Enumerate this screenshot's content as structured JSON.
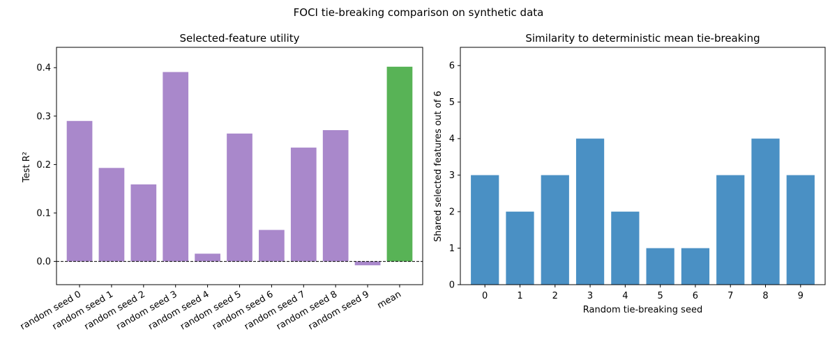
{
  "figure": {
    "suptitle": "FOCI tie-breaking comparison on synthetic data"
  },
  "chart_data": [
    {
      "type": "bar",
      "title": "Selected-feature utility",
      "xlabel": "",
      "ylabel": "Test R²",
      "categories": [
        "random seed 0",
        "random seed 1",
        "random seed 2",
        "random seed 3",
        "random seed 4",
        "random seed 5",
        "random seed 6",
        "random seed 7",
        "random seed 8",
        "random seed 9",
        "mean"
      ],
      "values": [
        0.29,
        0.193,
        0.159,
        0.391,
        0.016,
        0.264,
        0.065,
        0.235,
        0.271,
        -0.008,
        0.402
      ],
      "bar_colors": [
        "#a988cb",
        "#a988cb",
        "#a988cb",
        "#a988cb",
        "#a988cb",
        "#a988cb",
        "#a988cb",
        "#a988cb",
        "#a988cb",
        "#a988cb",
        "#58b356"
      ],
      "ylim": [
        -0.048,
        0.442
      ],
      "yticks": [
        0.0,
        0.1,
        0.2,
        0.3,
        0.4
      ],
      "ytick_labels": [
        "0.0",
        "0.1",
        "0.2",
        "0.3",
        "0.4"
      ],
      "reference_line": {
        "y": 0,
        "style": "dashed",
        "color": "#000000"
      },
      "grid": false,
      "legend": "none"
    },
    {
      "type": "bar",
      "title": "Similarity to deterministic mean tie-breaking",
      "xlabel": "Random tie-breaking seed",
      "ylabel": "Shared selected features out of 6",
      "categories": [
        "0",
        "1",
        "2",
        "3",
        "4",
        "5",
        "6",
        "7",
        "8",
        "9"
      ],
      "values": [
        3,
        2,
        3,
        4,
        2,
        1,
        1,
        3,
        4,
        3
      ],
      "bar_colors": [
        "#4a90c4",
        "#4a90c4",
        "#4a90c4",
        "#4a90c4",
        "#4a90c4",
        "#4a90c4",
        "#4a90c4",
        "#4a90c4",
        "#4a90c4",
        "#4a90c4"
      ],
      "ylim": [
        0,
        6.5
      ],
      "yticks": [
        0,
        1,
        2,
        3,
        4,
        5,
        6
      ],
      "ytick_labels": [
        "0",
        "1",
        "2",
        "3",
        "4",
        "5",
        "6"
      ],
      "grid": false,
      "legend": "none"
    }
  ]
}
